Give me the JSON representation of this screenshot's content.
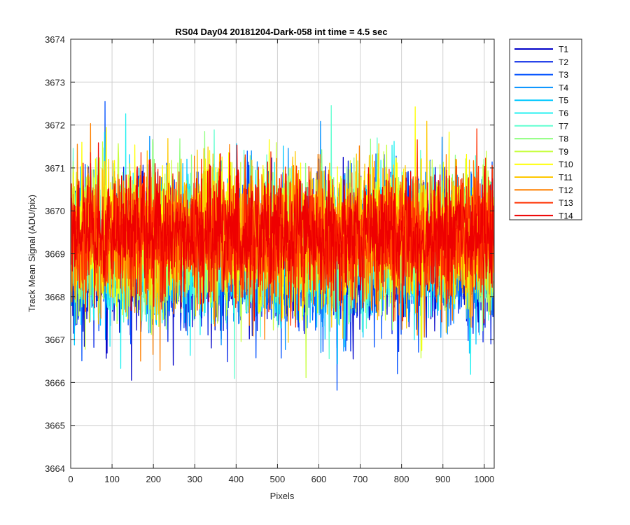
{
  "chart_data": {
    "type": "line",
    "title": "RS04 Day04 20181204-Dark-058 int time = 4.5 sec",
    "xlabel": "Pixels",
    "ylabel": "Track Mean Signal (ADU/pix)",
    "xlim": [
      0,
      1024
    ],
    "ylim": [
      3664,
      3674
    ],
    "xticks": [
      0,
      100,
      200,
      300,
      400,
      500,
      600,
      700,
      800,
      900,
      1000
    ],
    "yticks": [
      3664,
      3665,
      3666,
      3667,
      3668,
      3669,
      3670,
      3671,
      3672,
      3673,
      3674
    ],
    "grid": true,
    "legend_position": "outside-top-right",
    "num_points": 1024,
    "noise_model": {
      "mean": 3669.3,
      "std": 0.85
    },
    "series": [
      {
        "name": "T1",
        "color": "#0000c8",
        "mean": 3668.85,
        "std": 0.8
      },
      {
        "name": "T2",
        "color": "#0022e6",
        "mean": 3668.95,
        "std": 0.8
      },
      {
        "name": "T3",
        "color": "#0050ff",
        "mean": 3669.0,
        "std": 0.8
      },
      {
        "name": "T4",
        "color": "#0090ff",
        "mean": 3669.05,
        "std": 0.8
      },
      {
        "name": "T5",
        "color": "#00c8ff",
        "mean": 3669.1,
        "std": 0.8
      },
      {
        "name": "T6",
        "color": "#20f0f0",
        "mean": 3669.15,
        "std": 0.8
      },
      {
        "name": "T7",
        "color": "#60ffd0",
        "mean": 3669.2,
        "std": 0.8
      },
      {
        "name": "T8",
        "color": "#90ff80",
        "mean": 3669.3,
        "std": 0.8
      },
      {
        "name": "T9",
        "color": "#c8ff40",
        "mean": 3669.4,
        "std": 0.8
      },
      {
        "name": "T10",
        "color": "#ffff00",
        "mean": 3669.45,
        "std": 0.8
      },
      {
        "name": "T11",
        "color": "#ffc800",
        "mean": 3669.4,
        "std": 0.8
      },
      {
        "name": "T12",
        "color": "#ff8000",
        "mean": 3669.35,
        "std": 0.8
      },
      {
        "name": "T13",
        "color": "#ff3000",
        "mean": 3669.4,
        "std": 0.75
      },
      {
        "name": "T14",
        "color": "#ee0000",
        "mean": 3669.45,
        "std": 0.7
      }
    ]
  }
}
